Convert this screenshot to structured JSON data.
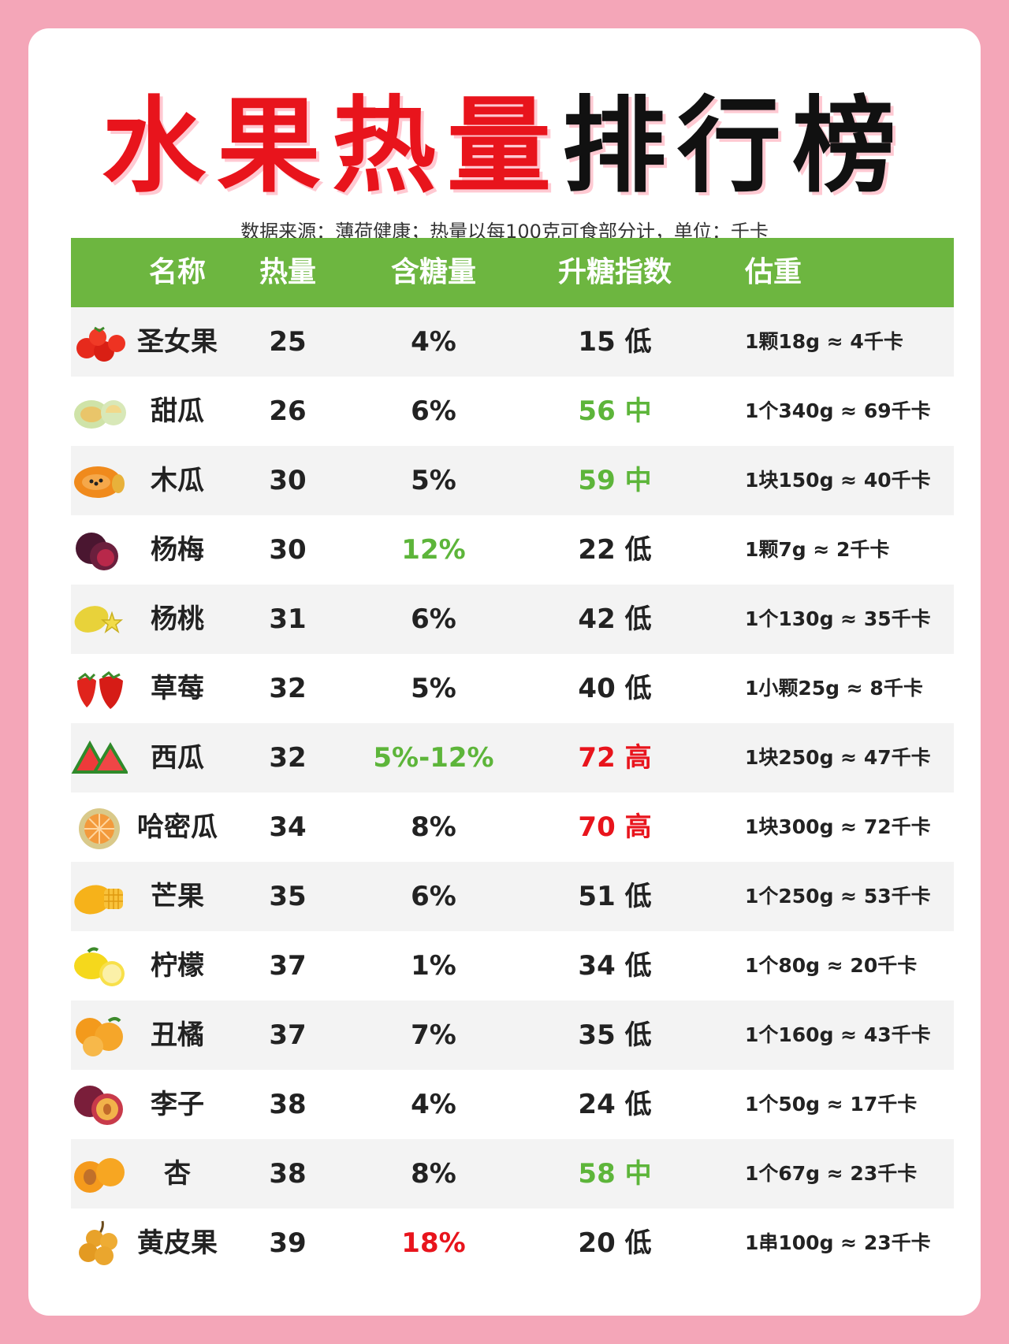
{
  "header": {
    "title_red": "水果热量",
    "title_black": "排行榜",
    "subtitle": "数据来源：薄荷健康；热量以每100克可食部分计，单位：千卡"
  },
  "table": {
    "columns": [
      "名称",
      "热量",
      "含糖量",
      "升糖指数",
      "估重"
    ],
    "rows": [
      {
        "icon": "cherry-tomato-icon",
        "name": "圣女果",
        "calories": "25",
        "sugar": "4%",
        "gi": "15 低",
        "weight": "1颗18g ≈ 4千卡"
      },
      {
        "icon": "melon-icon",
        "name": "甜瓜",
        "calories": "26",
        "sugar": "6%",
        "gi": "56 中",
        "weight": "1个340g ≈ 69千卡"
      },
      {
        "icon": "papaya-icon",
        "name": "木瓜",
        "calories": "30",
        "sugar": "5%",
        "gi": "59 中",
        "weight": "1块150g ≈ 40千卡"
      },
      {
        "icon": "bayberry-icon",
        "name": "杨梅",
        "calories": "30",
        "sugar": "12%",
        "gi": "22 低",
        "weight": "1颗7g ≈ 2千卡"
      },
      {
        "icon": "starfruit-icon",
        "name": "杨桃",
        "calories": "31",
        "sugar": "6%",
        "gi": "42 低",
        "weight": "1个130g ≈ 35千卡"
      },
      {
        "icon": "strawberry-icon",
        "name": "草莓",
        "calories": "32",
        "sugar": "5%",
        "gi": "40 低",
        "weight": "1小颗25g ≈ 8千卡"
      },
      {
        "icon": "watermelon-icon",
        "name": "西瓜",
        "calories": "32",
        "sugar": "5%-12%",
        "gi": "72 高",
        "weight": "1块250g ≈ 47千卡"
      },
      {
        "icon": "hami-melon-icon",
        "name": "哈密瓜",
        "calories": "34",
        "sugar": "8%",
        "gi": "70 高",
        "weight": "1块300g ≈ 72千卡"
      },
      {
        "icon": "mango-icon",
        "name": "芒果",
        "calories": "35",
        "sugar": "6%",
        "gi": "51 低",
        "weight": "1个250g ≈ 53千卡"
      },
      {
        "icon": "lemon-icon",
        "name": "柠檬",
        "calories": "37",
        "sugar": "1%",
        "gi": "34 低",
        "weight": "1个80g ≈ 20千卡"
      },
      {
        "icon": "ugly-orange-icon",
        "name": "丑橘",
        "calories": "37",
        "sugar": "7%",
        "gi": "35 低",
        "weight": "1个160g ≈ 43千卡"
      },
      {
        "icon": "plum-icon",
        "name": "李子",
        "calories": "38",
        "sugar": "4%",
        "gi": "24 低",
        "weight": "1个50g ≈ 17千卡"
      },
      {
        "icon": "apricot-icon",
        "name": "杏",
        "calories": "38",
        "sugar": "8%",
        "gi": "58 中",
        "weight": "1个67g ≈ 23千卡"
      },
      {
        "icon": "wampee-icon",
        "name": "黄皮果",
        "calories": "39",
        "sugar": "18%",
        "gi": "20 低",
        "weight": "1串100g ≈ 23千卡"
      }
    ]
  },
  "colors": {
    "header_green": "#6db640",
    "highlight_green": "#5db53a",
    "highlight_red": "#e8141c",
    "background_pink": "#f4a6b8"
  }
}
